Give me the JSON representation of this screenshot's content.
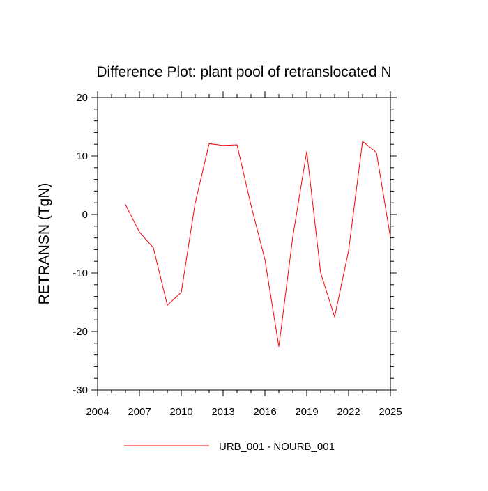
{
  "chart_data": {
    "type": "line",
    "title": "Difference Plot: plant pool of retranslocated N",
    "xlabel": "",
    "ylabel": "RETRANSN  (TgN)",
    "xlim": [
      2004,
      2025
    ],
    "ylim": [
      -30,
      20
    ],
    "x_ticks": [
      2004,
      2007,
      2010,
      2013,
      2016,
      2019,
      2022,
      2025
    ],
    "y_ticks": [
      20,
      10,
      0,
      -10,
      -20,
      -30
    ],
    "x_tick_labels": [
      "2004",
      "2007",
      "2010",
      "2013",
      "2016",
      "2019",
      "2022",
      "2025"
    ],
    "y_tick_labels": [
      "20",
      "10",
      "0",
      "-10",
      "-20",
      "-30"
    ],
    "grid": false,
    "legend_position": "bottom",
    "series": [
      {
        "name": "URB_001 - NOURB_001",
        "color": "#ff0000",
        "x": [
          2006,
          2007,
          2008,
          2009,
          2010,
          2011,
          2012,
          2013,
          2014,
          2015,
          2016,
          2017,
          2018,
          2019,
          2020,
          2021,
          2022,
          2023,
          2024,
          2025
        ],
        "y": [
          1.7,
          -3.0,
          -5.7,
          -15.5,
          -13.3,
          2.0,
          12.1,
          11.8,
          11.9,
          1.6,
          -7.7,
          -22.6,
          -3.8,
          10.8,
          -10.0,
          -17.5,
          -6.2,
          12.5,
          10.6,
          -3.9
        ]
      }
    ]
  }
}
